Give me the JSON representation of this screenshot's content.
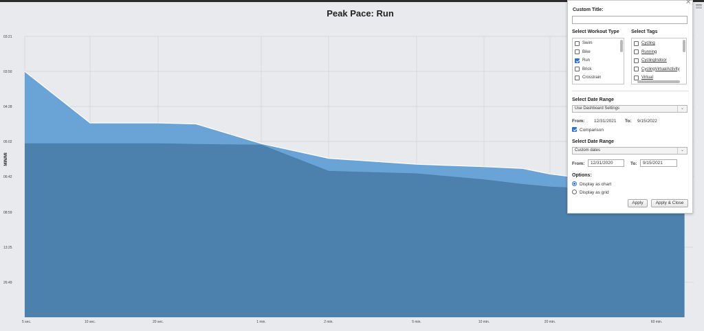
{
  "chart_data": {
    "type": "area",
    "title": "Peak Pace: Run",
    "ylabel": "MIN/MI",
    "xlabel": "",
    "x_ticks": [
      "5 sec.",
      "10 sec.",
      "20 sec.",
      "1 min.",
      "2 min.",
      "5 min.",
      "10 min.",
      "20 min.",
      "60 min."
    ],
    "y_ticks": [
      "03:21",
      "03:50",
      "04:28",
      "05:02",
      "06:42",
      "08:59",
      "13:25",
      "26:49"
    ],
    "x_seconds": [
      5,
      10,
      20,
      30,
      60,
      120,
      300,
      600,
      900,
      1200,
      2400,
      3600,
      4800
    ],
    "series": [
      {
        "name": "",
        "color": "#6aa4d6",
        "values": [
          "03:50",
          "04:44",
          "04:44",
          "04:45",
          "05:08",
          "05:50",
          "06:07",
          "06:14",
          "06:19",
          "06:35",
          "07:04",
          "07:25",
          "07:40"
        ]
      },
      {
        "name": "",
        "color": "#4a7eaa",
        "values": [
          "05:08",
          "05:08",
          "05:08",
          "05:10",
          "05:12",
          "06:27",
          "06:34",
          "06:54",
          "07:12",
          "07:22",
          "07:33",
          "07:44",
          "07:56"
        ]
      }
    ],
    "grid": true,
    "legend": "none"
  },
  "panel": {
    "custom_title_label": "Custom Title:",
    "custom_title_value": "",
    "workout_type_label": "Select Workout Type",
    "workout_types": [
      {
        "label": "Swim",
        "checked": false
      },
      {
        "label": "Bike",
        "checked": false
      },
      {
        "label": "Run",
        "checked": true
      },
      {
        "label": "Brick",
        "checked": false
      },
      {
        "label": "Crosstrain",
        "checked": false
      }
    ],
    "tags_label": "Select Tags",
    "tags": [
      {
        "label": "Cycling",
        "checked": false
      },
      {
        "label": "Running",
        "checked": false
      },
      {
        "label": "CyclingIndoor",
        "checked": false
      },
      {
        "label": "CyclingVirtualActivity",
        "checked": false
      },
      {
        "label": "Virtual",
        "checked": false
      }
    ],
    "date_range_1": {
      "label": "Select Date Range",
      "selected": "Use Dashboard Settings",
      "from_label": "From:",
      "from": "12/31/2021",
      "to_label": "To:",
      "to": "9/15/2022"
    },
    "comparison": {
      "label": "Comparison",
      "checked": true
    },
    "date_range_2": {
      "label": "Select Date Range",
      "selected": "Custom dates",
      "from_label": "From:",
      "from": "12/31/2020",
      "to_label": "To:",
      "to": "9/15/2021"
    },
    "options_label": "Options:",
    "options": [
      {
        "label": "Display as chart",
        "selected": true
      },
      {
        "label": "Display as grid",
        "selected": false
      }
    ],
    "apply_label": "Apply",
    "apply_close_label": "Apply & Close"
  }
}
